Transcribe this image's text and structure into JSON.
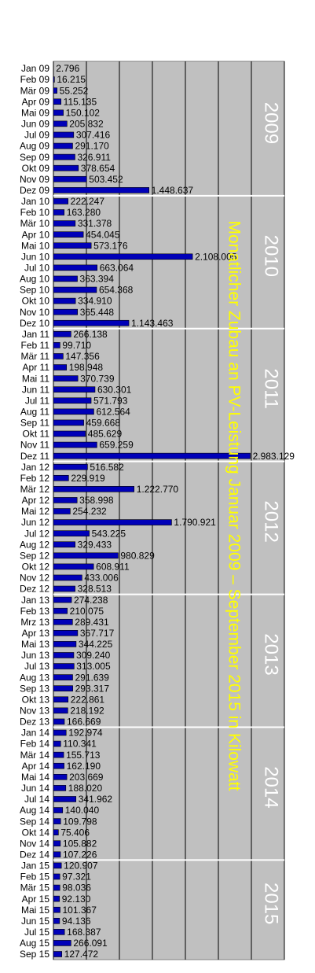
{
  "chart_data": {
    "type": "bar",
    "orientation": "horizontal",
    "title": "Monatlicher Zubau an PV-Leistung Januar 2009 – September 2015 in Kilowatt",
    "year_labels": [
      "2009",
      "2010",
      "2011",
      "2012",
      "2013",
      "2014",
      "2015"
    ],
    "categories": [
      "Jan 09",
      "Feb 09",
      "Mär 09",
      "Apr 09",
      "Mai 09",
      "Jun 09",
      "Jul 09",
      "Aug 09",
      "Sep 09",
      "Okt 09",
      "Nov 09",
      "Dez 09",
      "Jan 10",
      "Feb 10",
      "Mär 10",
      "Apr 10",
      "Mai 10",
      "Jun 10",
      "Jul 10",
      "Aug 10",
      "Sep 10",
      "Okt 10",
      "Nov 10",
      "Dez 10",
      "Jan 11",
      "Feb 11",
      "Mär 11",
      "Apr 11",
      "Mai 11",
      "Jun 11",
      "Jul 11",
      "Aug 11",
      "Sep 11",
      "Okt 11",
      "Nov 11",
      "Dez 11",
      "Jan 12",
      "Feb 12",
      "Mär 12",
      "Apr 12",
      "Mai 12",
      "Jun 12",
      "Jul 12",
      "Aug 12",
      "Sep 12",
      "Okt 12",
      "Nov 12",
      "Dez 12",
      "Jan 13",
      "Feb 13",
      "Mrz 13",
      "Apr 13",
      "Mai 13",
      "Jun 13",
      "Jul 13",
      "Aug 13",
      "Sep 13",
      "Okt 13",
      "Nov 13",
      "Dez 13",
      "Jan 14",
      "Feb 14",
      "Mär 14",
      "Apr 14",
      "Mai 14",
      "Jun 14",
      "Jul 14",
      "Aug 14",
      "Sep 14",
      "Okt 14",
      "Nov 14",
      "Dez 14",
      "Jan 15",
      "Feb 15",
      "Mär 15",
      "Apr 15",
      "Mai 15",
      "Jun 15",
      "Jul 15",
      "Aug 15",
      "Sep 15"
    ],
    "values": [
      2796,
      16215,
      55252,
      115135,
      150102,
      205832,
      307416,
      291170,
      326911,
      378654,
      503452,
      1448637,
      222247,
      163280,
      331378,
      454045,
      573176,
      2108005,
      663064,
      363394,
      654368,
      334910,
      365448,
      1143463,
      266138,
      99710,
      147356,
      198948,
      370739,
      630301,
      571793,
      612564,
      459668,
      485629,
      659259,
      2983129,
      516582,
      229919,
      1222770,
      358998,
      254232,
      1790921,
      543225,
      329433,
      980829,
      608911,
      433006,
      328513,
      274238,
      210075,
      289431,
      367717,
      344225,
      309240,
      313005,
      291639,
      293317,
      222861,
      218192,
      166669,
      192974,
      110341,
      155713,
      162190,
      203669,
      188020,
      341962,
      140040,
      109798,
      75406,
      105882,
      107226,
      120907,
      97321,
      98036,
      92130,
      101367,
      94136,
      168387,
      266091,
      127472
    ],
    "value_labels": [
      "2.796",
      "16.215",
      "55.252",
      "115.135",
      "150.102",
      "205.832",
      "307.416",
      "291.170",
      "326.911",
      "378.654",
      "503.452",
      "1.448.637",
      "222.247",
      "163.280",
      "331.378",
      "454.045",
      "573.176",
      "2.108.005",
      "663.064",
      "363.394",
      "654.368",
      "334.910",
      "365.448",
      "1.143.463",
      "266.138",
      "99.710",
      "147.356",
      "198.948",
      "370.739",
      "630.301",
      "571.793",
      "612.564",
      "459.668",
      "485.629",
      "659.259",
      "2.983.129",
      "516.582",
      "229.919",
      "1.222.770",
      "358.998",
      "254.232",
      "1.790.921",
      "543.225",
      "329.433",
      "980.829",
      "608.911",
      "433.006",
      "328.513",
      "274.238",
      "210.075",
      "289.431",
      "367.717",
      "344.225",
      "309.240",
      "313.005",
      "291.639",
      "293.317",
      "222.861",
      "218.192",
      "166.669",
      "192.974",
      "110.341",
      "155.713",
      "162.190",
      "203.669",
      "188.020",
      "341.962",
      "140.040",
      "109.798",
      "75.406",
      "105.882",
      "107.226",
      "120.907",
      "97.321",
      "98.036",
      "92.130",
      "101.367",
      "94.136",
      "168.387",
      "266.091",
      "127.472"
    ],
    "color": "#0000b8",
    "xlim": [
      0,
      3500000
    ],
    "xticks": [
      0,
      500000,
      1000000,
      1500000,
      2000000,
      2500000,
      3000000,
      3500000
    ],
    "grid": true
  }
}
